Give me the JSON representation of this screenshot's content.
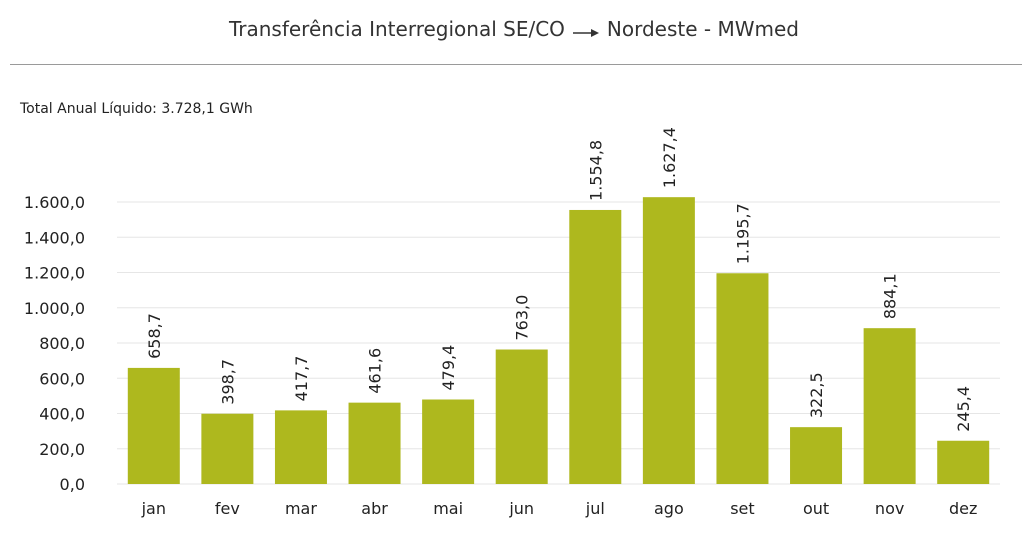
{
  "title": {
    "left": "Transferência Interregional SE/CO",
    "right": "Nordeste - MWmed",
    "arrow_icon": "right-arrow-icon"
  },
  "subtitle": "Total Anual Líquido: 3.728,1 GWh",
  "chart_data": {
    "type": "bar",
    "title": "Transferência Interregional SE/CO → Nordeste - MWmed",
    "subtitle": "Total Anual Líquido: 3.728,1 GWh",
    "categories": [
      "jan",
      "fev",
      "mar",
      "abr",
      "mai",
      "jun",
      "jul",
      "ago",
      "set",
      "out",
      "nov",
      "dez"
    ],
    "values": [
      658.7,
      398.7,
      417.7,
      461.6,
      479.4,
      763.0,
      1554.8,
      1627.4,
      1195.7,
      322.5,
      884.1,
      245.4
    ],
    "value_labels": [
      "658,7",
      "398,7",
      "417,7",
      "461,6",
      "479,4",
      "763,0",
      "1.554,8",
      "1.627,4",
      "1.195,7",
      "322,5",
      "884,1",
      "245,4"
    ],
    "y_ticks": [
      0,
      200,
      400,
      600,
      800,
      1000,
      1200,
      1400,
      1600
    ],
    "y_tick_labels": [
      "0,0",
      "200,0",
      "400,0",
      "600,0",
      "800,0",
      "1.000,0",
      "1.200,0",
      "1.400,0",
      "1.600,0"
    ],
    "ylim": [
      0,
      1600
    ],
    "xlabel": "",
    "ylabel": "",
    "grid": true,
    "legend": "none",
    "bar_color": "#aeb81e",
    "grid_color": "#e6e6e6"
  }
}
